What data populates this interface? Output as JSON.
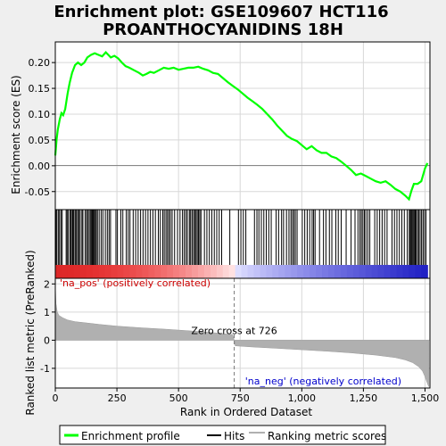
{
  "chart_data": {
    "type": "line",
    "title": "Enrichment plot: GSE109607 HCT116",
    "subtitle": "PROANTHOCYANIDINS 18H",
    "xlabel": "Rank in Ordered Dataset",
    "ylabel_es": "Enrichment score (ES)",
    "ylabel_metric": "Ranked list metric (PreRanked)",
    "xlim": [
      0,
      1520
    ],
    "es_ylim": [
      -0.085,
      0.24
    ],
    "metric_ylim": [
      -1.7,
      2.2
    ],
    "x_ticks": [
      0,
      250,
      500,
      750,
      1000,
      1250,
      1500
    ],
    "x_tick_labels": [
      "0",
      "250",
      "500",
      "750",
      "1,000",
      "1,250",
      "1,500"
    ],
    "es_ticks": [
      0.2,
      0.15,
      0.1,
      0.05,
      0.0,
      -0.05
    ],
    "es_tick_labels": [
      "0.20",
      "0.15",
      "0.10",
      "0.05",
      "0.00",
      "-0.05"
    ],
    "metric_ticks": [
      2,
      1,
      0,
      -1
    ],
    "metric_tick_labels": [
      "2",
      "1",
      "0",
      "-1"
    ],
    "grid": true,
    "zero_cross": 726,
    "zero_cross_label": "Zero cross at 726",
    "pos_label": "'na_pos' (positively correlated)",
    "neg_label": "'na_neg' (negatively correlated)",
    "legend": [
      "Enrichment profile",
      "Hits",
      "Ranking metric scores"
    ],
    "legend_position": "bottom",
    "colors": {
      "es": "#00ff00",
      "hits": "#000000",
      "metric": "#b0b0b0",
      "pos_text": "#cc0000",
      "neg_text": "#0000cc"
    },
    "es_series": {
      "name": "Enrichment profile",
      "x": [
        0,
        5,
        10,
        18,
        25,
        32,
        40,
        50,
        58,
        68,
        80,
        92,
        105,
        118,
        130,
        145,
        160,
        175,
        190,
        205,
        215,
        225,
        240,
        255,
        270,
        285,
        300,
        320,
        340,
        355,
        370,
        385,
        400,
        420,
        440,
        460,
        480,
        500,
        520,
        540,
        560,
        580,
        600,
        620,
        640,
        660,
        680,
        700,
        720,
        740,
        760,
        780,
        800,
        820,
        840,
        860,
        880,
        900,
        920,
        940,
        960,
        980,
        1000,
        1020,
        1040,
        1060,
        1080,
        1100,
        1120,
        1140,
        1160,
        1180,
        1200,
        1220,
        1240,
        1260,
        1280,
        1300,
        1320,
        1340,
        1360,
        1380,
        1400,
        1420,
        1435,
        1445,
        1455,
        1470,
        1485,
        1500,
        1510
      ],
      "y": [
        0.02,
        0.05,
        0.07,
        0.09,
        0.102,
        0.098,
        0.11,
        0.14,
        0.16,
        0.18,
        0.195,
        0.2,
        0.195,
        0.2,
        0.21,
        0.215,
        0.218,
        0.215,
        0.212,
        0.22,
        0.215,
        0.21,
        0.213,
        0.208,
        0.2,
        0.193,
        0.19,
        0.185,
        0.18,
        0.175,
        0.178,
        0.182,
        0.18,
        0.185,
        0.19,
        0.188,
        0.19,
        0.186,
        0.188,
        0.19,
        0.19,
        0.192,
        0.188,
        0.185,
        0.18,
        0.178,
        0.17,
        0.162,
        0.155,
        0.148,
        0.14,
        0.132,
        0.125,
        0.118,
        0.11,
        0.1,
        0.09,
        0.078,
        0.068,
        0.058,
        0.052,
        0.048,
        0.04,
        0.032,
        0.038,
        0.03,
        0.025,
        0.025,
        0.018,
        0.015,
        0.008,
        0.0,
        -0.008,
        -0.018,
        -0.015,
        -0.02,
        -0.025,
        -0.03,
        -0.033,
        -0.03,
        -0.037,
        -0.045,
        -0.05,
        -0.058,
        -0.065,
        -0.048,
        -0.035,
        -0.035,
        -0.03,
        -0.005,
        0.005
      ]
    },
    "hit_ranks": [
      2,
      6,
      12,
      17,
      23,
      28,
      44,
      48,
      53,
      60,
      64,
      69,
      72,
      76,
      82,
      86,
      91,
      96,
      101,
      108,
      112,
      121,
      127,
      131,
      137,
      142,
      146,
      150,
      154,
      158,
      162,
      166,
      171,
      178,
      186,
      193,
      203,
      211,
      218,
      224,
      246,
      252,
      266,
      274,
      288,
      296,
      303,
      316,
      326,
      336,
      346,
      356,
      366,
      376,
      386,
      396,
      406,
      418,
      426,
      436,
      442,
      449,
      455,
      461,
      467,
      474,
      484,
      496,
      506,
      516,
      523,
      530,
      536,
      544,
      549,
      555,
      561,
      566,
      571,
      576,
      581,
      586,
      591,
      605,
      615,
      625,
      635,
      645,
      655,
      665,
      675,
      708,
      743,
      753,
      763,
      773,
      808,
      818,
      826,
      836,
      846,
      856,
      866,
      876,
      896,
      906,
      918,
      926,
      938,
      948,
      956,
      962,
      968,
      974,
      981,
      1002,
      1012,
      1022,
      1032,
      1042,
      1048,
      1054,
      1072,
      1088,
      1098,
      1112,
      1122,
      1138,
      1148,
      1160,
      1180,
      1200,
      1216,
      1228,
      1236,
      1242,
      1248,
      1254,
      1260,
      1268,
      1276,
      1296,
      1306,
      1316,
      1326,
      1336,
      1346,
      1366,
      1376,
      1386,
      1396,
      1406,
      1416,
      1428,
      1436,
      1440,
      1444,
      1448,
      1452,
      1456,
      1460,
      1464,
      1470,
      1474,
      1480,
      1486,
      1492,
      1498,
      1504
    ],
    "metric_profile": {
      "x": [
        0,
        3,
        8,
        15,
        30,
        50,
        80,
        120,
        180,
        250,
        350,
        450,
        550,
        650,
        720,
        726,
        730,
        800,
        900,
        1000,
        1100,
        1200,
        1300,
        1380,
        1420,
        1450,
        1475,
        1490,
        1500,
        1508,
        1515
      ],
      "y": [
        2.0,
        1.3,
        1.0,
        0.88,
        0.8,
        0.72,
        0.66,
        0.62,
        0.56,
        0.5,
        0.44,
        0.39,
        0.33,
        0.26,
        0.2,
        0.0,
        -0.2,
        -0.24,
        -0.29,
        -0.34,
        -0.39,
        -0.45,
        -0.53,
        -0.62,
        -0.7,
        -0.8,
        -0.95,
        -1.1,
        -1.3,
        -1.5,
        -1.65
      ]
    }
  }
}
